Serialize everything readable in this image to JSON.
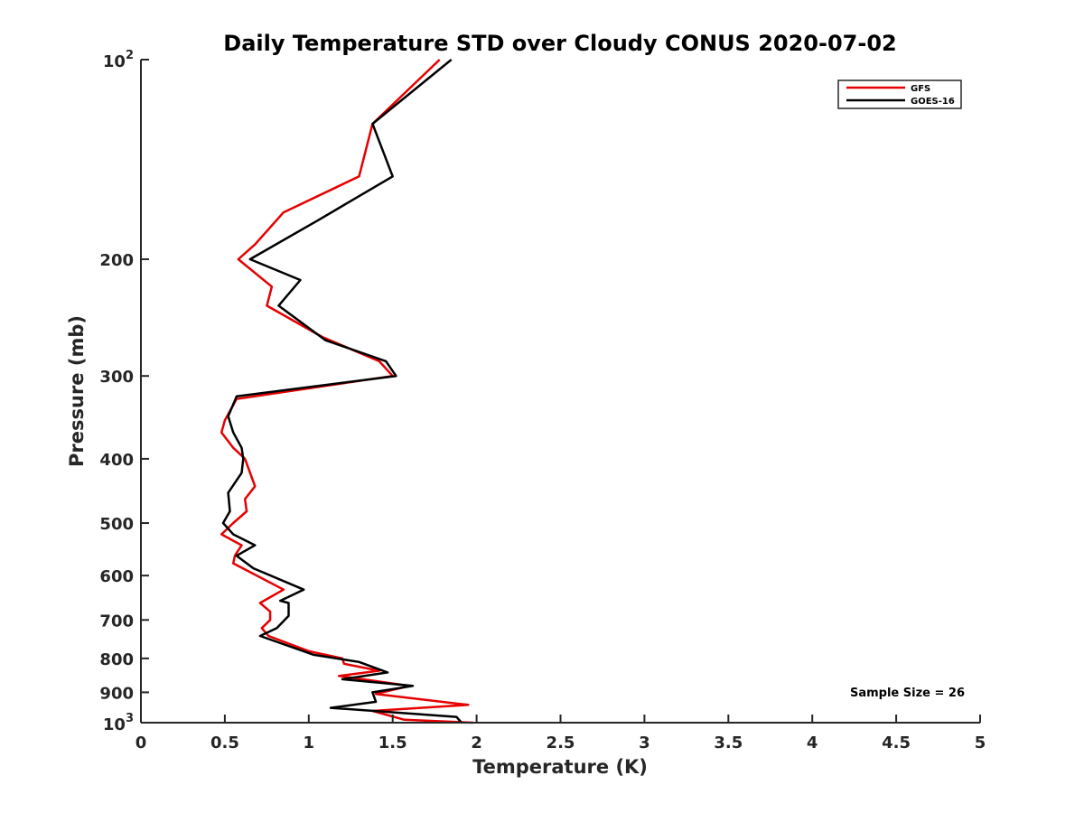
{
  "chart_data": {
    "type": "line",
    "title": "Daily Temperature STD over Cloudy CONUS 2020-07-02",
    "xlabel": "Temperature (K)",
    "ylabel": "Pressure (mb)",
    "xlim": [
      0,
      5
    ],
    "ylim": [
      100,
      1000
    ],
    "y_scale": "log",
    "y_reversed": true,
    "grid": false,
    "legend_position": "top-right",
    "x_ticks": [
      0,
      0.5,
      1,
      1.5,
      2,
      2.5,
      3,
      3.5,
      4,
      4.5,
      5
    ],
    "x_tick_labels": [
      "0",
      "0.5",
      "1",
      "1.5",
      "2",
      "2.5",
      "3",
      "3.5",
      "4",
      "4.5",
      "5"
    ],
    "y_ticks": [
      200,
      300,
      400,
      500,
      600,
      700,
      800,
      900
    ],
    "y_tick_labels": [
      "200",
      "300",
      "400",
      "500",
      "600",
      "700",
      "800",
      "900"
    ],
    "y_top_label": {
      "base": "10",
      "exp": "2"
    },
    "y_bottom_label": {
      "base": "10",
      "exp": "3"
    },
    "annotation": "Sample Size = 26",
    "series": [
      {
        "name": "GFS",
        "color": "#e60000",
        "points": [
          [
            1.78,
            100
          ],
          [
            1.38,
            125
          ],
          [
            1.3,
            150
          ],
          [
            0.85,
            170
          ],
          [
            0.68,
            190
          ],
          [
            0.58,
            200
          ],
          [
            0.78,
            220
          ],
          [
            0.75,
            235
          ],
          [
            1.08,
            262
          ],
          [
            1.42,
            285
          ],
          [
            1.5,
            300
          ],
          [
            0.57,
            325
          ],
          [
            0.5,
            350
          ],
          [
            0.48,
            365
          ],
          [
            0.55,
            385
          ],
          [
            0.62,
            400
          ],
          [
            0.68,
            440
          ],
          [
            0.62,
            460
          ],
          [
            0.63,
            480
          ],
          [
            0.55,
            500
          ],
          [
            0.48,
            520
          ],
          [
            0.6,
            540
          ],
          [
            0.56,
            560
          ],
          [
            0.55,
            575
          ],
          [
            0.85,
            630
          ],
          [
            0.71,
            660
          ],
          [
            0.77,
            680
          ],
          [
            0.77,
            700
          ],
          [
            0.72,
            720
          ],
          [
            0.76,
            740
          ],
          [
            1.0,
            780
          ],
          [
            1.2,
            800
          ],
          [
            1.21,
            815
          ],
          [
            1.42,
            835
          ],
          [
            1.18,
            850
          ],
          [
            1.6,
            880
          ],
          [
            1.4,
            905
          ],
          [
            1.95,
            940
          ],
          [
            1.38,
            960
          ],
          [
            1.57,
            990
          ],
          [
            1.98,
            1000
          ]
        ]
      },
      {
        "name": "GOES-16",
        "color": "#000000",
        "points": [
          [
            1.85,
            100
          ],
          [
            1.38,
            125
          ],
          [
            1.5,
            150
          ],
          [
            1.05,
            175
          ],
          [
            0.65,
            200
          ],
          [
            0.95,
            215
          ],
          [
            0.82,
            235
          ],
          [
            1.1,
            265
          ],
          [
            1.46,
            285
          ],
          [
            1.52,
            300
          ],
          [
            0.57,
            322
          ],
          [
            0.52,
            345
          ],
          [
            0.55,
            365
          ],
          [
            0.6,
            385
          ],
          [
            0.61,
            400
          ],
          [
            0.6,
            420
          ],
          [
            0.52,
            450
          ],
          [
            0.53,
            480
          ],
          [
            0.49,
            500
          ],
          [
            0.55,
            520
          ],
          [
            0.68,
            540
          ],
          [
            0.57,
            560
          ],
          [
            0.67,
            585
          ],
          [
            0.97,
            630
          ],
          [
            0.83,
            655
          ],
          [
            0.88,
            660
          ],
          [
            0.88,
            690
          ],
          [
            0.81,
            720
          ],
          [
            0.71,
            740
          ],
          [
            1.03,
            790
          ],
          [
            1.3,
            810
          ],
          [
            1.47,
            840
          ],
          [
            1.2,
            860
          ],
          [
            1.62,
            880
          ],
          [
            1.38,
            900
          ],
          [
            1.4,
            930
          ],
          [
            1.13,
            950
          ],
          [
            1.88,
            980
          ],
          [
            1.91,
            1000
          ]
        ]
      }
    ]
  }
}
